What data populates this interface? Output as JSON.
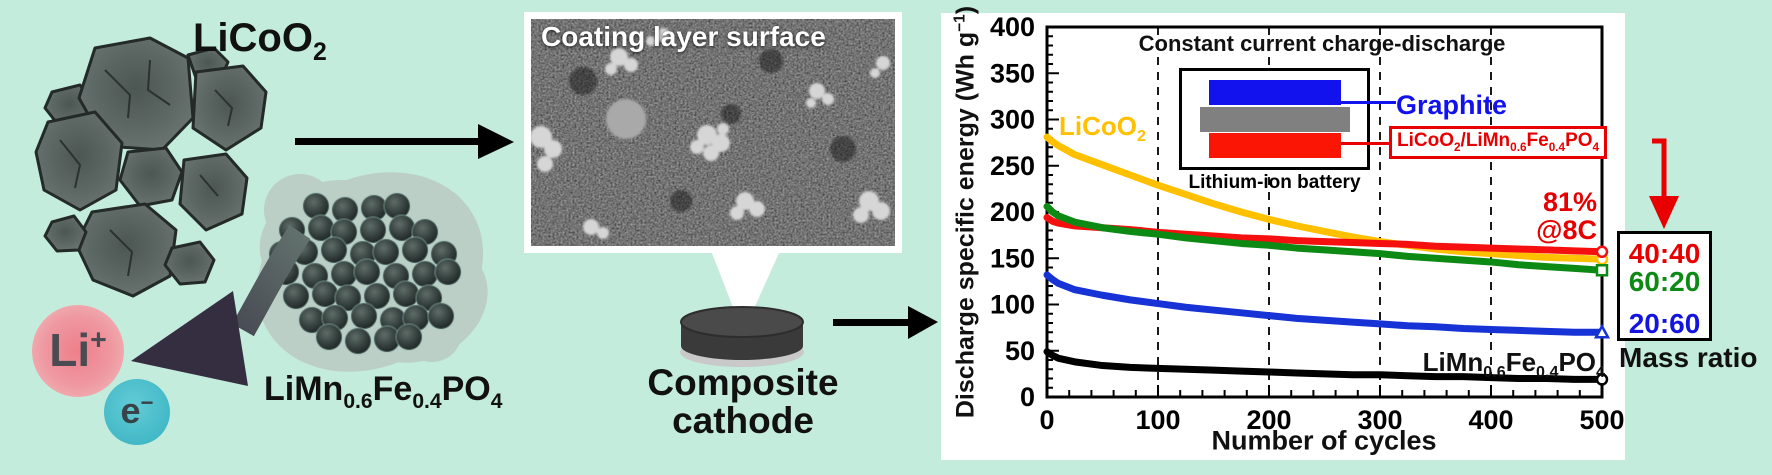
{
  "page": {
    "background": "#c4ecdd"
  },
  "left": {
    "licoo2_label": [
      {
        "t": "LiCoO"
      },
      {
        "t": "2",
        "sub": true
      }
    ],
    "limnfepo4_label": [
      {
        "t": "LiMn"
      },
      {
        "t": "0.6",
        "sub": true
      },
      {
        "t": "Fe"
      },
      {
        "t": "0.4",
        "sub": true
      },
      {
        "t": "PO"
      },
      {
        "t": "4",
        "sub": true
      }
    ],
    "li_ion_label": [
      {
        "t": "Li"
      },
      {
        "t": "+",
        "sup": true
      }
    ],
    "electron_label": [
      {
        "t": "e"
      },
      {
        "t": "−",
        "sup": true
      }
    ]
  },
  "middle": {
    "sem_title": "Coating layer surface",
    "cathode_caption_line1": "Composite",
    "cathode_caption_line2": "cathode"
  },
  "chart": {
    "inset_title": "Constant current charge-discharge",
    "graphite_label": "Graphite",
    "graphite_color": "#1212ee",
    "separator_color": "#808080",
    "cathode_layer_color": "#fa1505",
    "cathode_label": [
      {
        "t": "LiCoO"
      },
      {
        "t": "2",
        "sub": true
      },
      {
        "t": "/LiMn"
      },
      {
        "t": "0.6",
        "sub": true
      },
      {
        "t": "Fe"
      },
      {
        "t": "0.4",
        "sub": true
      },
      {
        "t": "PO"
      },
      {
        "t": "4",
        "sub": true
      }
    ],
    "battery_caption": "Lithium-ion battery",
    "retention_line1": "81%",
    "retention_line2": "@8C",
    "retention_color": "#e80000",
    "licoo2_series_label": [
      {
        "t": "LiCoO"
      },
      {
        "t": "2",
        "sub": true
      }
    ],
    "licoo2_series_color": "#ffc000",
    "limnfepo4_series_label": [
      {
        "t": "LiMn"
      },
      {
        "t": "0.6",
        "sub": true
      },
      {
        "t": "Fe"
      },
      {
        "t": "0.4",
        "sub": true
      },
      {
        "t": "PO"
      },
      {
        "t": "4",
        "sub": true
      }
    ],
    "ylabel_rich": [
      {
        "t": "Discharge specific energy (Wh g"
      },
      {
        "t": "−1",
        "sup": true
      },
      {
        "t": ")"
      }
    ],
    "mass_ratio": {
      "items": [
        {
          "label": "40:40",
          "color": "#e80000"
        },
        {
          "label": "60:20",
          "color": "#0c8a14"
        },
        {
          "label": "20:60",
          "color": "#1414e0"
        }
      ],
      "caption": "Mass ratio"
    }
  },
  "chart_data": {
    "type": "line",
    "title": "",
    "xlabel": "Number of cycles",
    "ylabel": "Discharge specific energy (Wh g-1)",
    "xlim": [
      0,
      500
    ],
    "ylim": [
      0,
      400
    ],
    "x_ticks": [
      0,
      100,
      200,
      300,
      400,
      500
    ],
    "y_ticks": [
      0,
      50,
      100,
      150,
      200,
      250,
      300,
      350,
      400
    ],
    "gridline_x": [
      100,
      200,
      300,
      400
    ],
    "grid_style": "vertical dashed black lines",
    "legend_position": "inset battery schematic top center; mass-ratio box outside right",
    "x": [
      0,
      5,
      10,
      25,
      50,
      75,
      100,
      125,
      150,
      175,
      200,
      225,
      250,
      275,
      300,
      325,
      350,
      375,
      400,
      425,
      450,
      475,
      500
    ],
    "series": [
      {
        "name": "LiCoO2",
        "color": "#ffc000",
        "marker": "circle",
        "values": [
          281,
          276,
          272,
          262,
          251,
          240,
          229,
          219,
          209,
          200,
          192,
          185,
          179,
          173,
          168,
          164,
          160,
          157,
          155,
          153,
          151,
          150,
          149
        ]
      },
      {
        "name": "40:40 LiCoO2/LiMn0.6Fe0.4PO4",
        "color": "#f50f0f",
        "marker": "circle",
        "values": [
          194,
          190,
          188,
          185,
          183,
          181,
          178,
          176,
          174,
          172,
          171,
          169,
          168,
          167,
          166,
          165,
          163,
          162,
          161,
          160,
          159,
          158,
          157
        ]
      },
      {
        "name": "60:20 LiCoO2/LiMn0.6Fe0.4PO4",
        "color": "#0c8a14",
        "marker": "square",
        "values": [
          206,
          200,
          196,
          189,
          183,
          179,
          176,
          172,
          169,
          166,
          164,
          161,
          159,
          157,
          155,
          152,
          150,
          148,
          146,
          143,
          141,
          139,
          137
        ]
      },
      {
        "name": "20:60 LiCoO2/LiMn0.6Fe0.4PO4",
        "color": "#1733d6",
        "marker": "triangle",
        "values": [
          132,
          127,
          123,
          116,
          110,
          105,
          101,
          97,
          94,
          91,
          88,
          85,
          83,
          81,
          79,
          77,
          76,
          74,
          73,
          72,
          71,
          70,
          70
        ]
      },
      {
        "name": "LiMn0.6Fe0.4PO4",
        "color": "#000000",
        "marker": "circle",
        "values": [
          49,
          45,
          42,
          38,
          34,
          32,
          31,
          30,
          29,
          28,
          27,
          26,
          25,
          24,
          24,
          23,
          22,
          22,
          21,
          20,
          20,
          19,
          19
        ]
      }
    ]
  }
}
